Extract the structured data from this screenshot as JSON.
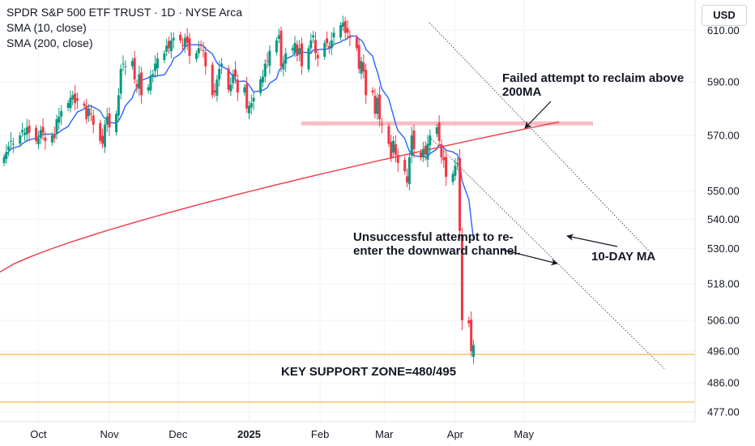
{
  "legend": {
    "title": "SPDR S&P 500 ETF TRUST · 1D · NYSE Arca",
    "line1": "SMA (10, close)",
    "line2": "SMA (200, close)"
  },
  "currency": "USD",
  "colors": {
    "up": "#089981",
    "down": "#f23645",
    "sma10": "#2962ff",
    "sma200": "#f23645",
    "support": "#f5a623",
    "resistance_band": "#f7b5bb",
    "channel": "#555555"
  },
  "annotations": {
    "failed_reclaim": "Failed attempt to reclaim above 200MA",
    "unsuccessful": "Unsuccessful attempt to re-enter the downward channel.",
    "ten_day_ma": "10-DAY MA",
    "support_zone": "KEY SUPPORT ZONE=480/495"
  },
  "chart_data": {
    "type": "candlestick",
    "title": "SPDR S&P 500 ETF TRUST · 1D · NYSE Arca",
    "y_ticks": [
      "610.00",
      "590.00",
      "570.00",
      "550.00",
      "540.00",
      "530.00",
      "518.00",
      "506.00",
      "496.00",
      "486.00",
      "477.00"
    ],
    "x_ticks": [
      "Oct",
      "Nov",
      "Dec",
      "2025",
      "Feb",
      "Mar",
      "Apr",
      "May"
    ],
    "scale": "log",
    "ylim": [
      474,
      622
    ],
    "start_date": "2024-09-16",
    "closes": [
      562,
      564,
      566,
      568,
      567,
      570,
      572,
      571,
      573,
      571,
      568,
      569,
      572,
      571,
      568,
      570,
      569,
      576,
      577,
      579,
      582,
      584,
      585,
      582,
      583,
      581,
      576,
      580,
      578,
      574,
      568,
      567,
      574,
      577,
      573,
      578,
      585,
      595,
      597,
      596,
      598,
      591,
      588,
      593,
      585,
      588,
      592,
      593,
      597,
      599,
      601,
      604,
      603,
      606,
      607,
      606,
      604,
      607,
      605,
      600,
      601,
      603,
      604,
      602,
      596,
      585,
      586,
      591,
      595,
      597,
      587,
      589,
      593,
      592,
      586,
      588,
      580,
      581,
      582,
      584,
      591,
      592,
      597,
      598,
      602,
      606,
      608,
      596,
      597,
      601,
      603,
      605,
      600,
      603,
      596,
      603,
      606,
      608,
      601,
      599,
      605,
      605,
      603,
      606,
      609,
      612,
      613,
      609,
      609,
      607,
      603,
      595,
      598,
      594,
      585,
      586,
      578,
      584,
      576,
      574,
      567,
      562,
      568,
      563,
      560,
      557,
      553,
      562,
      570,
      565,
      562,
      565,
      563,
      567,
      570,
      573,
      568,
      562,
      561,
      555,
      556,
      559,
      560,
      536,
      506,
      505,
      496,
      498
    ]
  }
}
